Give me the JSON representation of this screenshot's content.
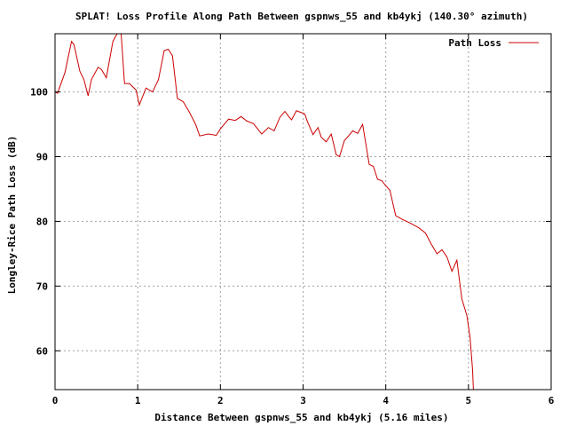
{
  "chart_data": {
    "type": "line",
    "title": "SPLAT! Loss Profile Along Path Between gspnws_55 and kb4ykj (140.30° azimuth)",
    "xlabel": "Distance Between gspnws_55 and kb4ykj (5.16 miles)",
    "ylabel": "Longley-Rice Path Loss (dB)",
    "xlim": [
      0,
      6
    ],
    "ylim": [
      54,
      109
    ],
    "xticks": [
      0,
      1,
      2,
      3,
      4,
      5,
      6
    ],
    "yticks": [
      60,
      70,
      80,
      90,
      100
    ],
    "grid": true,
    "legend_position": "top-right",
    "series": [
      {
        "name": "Path Loss",
        "color": "#cc0000",
        "x": [
          0.0,
          0.03,
          0.12,
          0.2,
          0.23,
          0.3,
          0.35,
          0.4,
          0.44,
          0.52,
          0.56,
          0.62,
          0.7,
          0.75,
          0.8,
          0.84,
          0.9,
          0.98,
          1.02,
          1.1,
          1.18,
          1.25,
          1.32,
          1.37,
          1.42,
          1.48,
          1.55,
          1.62,
          1.7,
          1.75,
          1.85,
          1.95,
          2.0,
          2.1,
          2.18,
          2.25,
          2.32,
          2.4,
          2.5,
          2.58,
          2.65,
          2.72,
          2.78,
          2.82,
          2.86,
          2.92,
          2.98,
          3.02,
          3.05,
          3.12,
          3.18,
          3.22,
          3.28,
          3.34,
          3.4,
          3.44,
          3.5,
          3.55,
          3.6,
          3.66,
          3.72,
          3.8,
          3.85,
          3.9,
          3.95,
          4.0,
          4.05,
          4.12,
          4.2,
          4.3,
          4.4,
          4.48,
          4.55,
          4.62,
          4.68,
          4.74,
          4.8,
          4.86,
          4.92,
          4.98,
          5.02,
          5.05,
          5.06
        ],
        "values": [
          100.0,
          99.8,
          103.0,
          107.8,
          107.3,
          103.2,
          101.9,
          99.4,
          101.9,
          103.8,
          103.5,
          102.2,
          107.8,
          109.0,
          109.0,
          101.3,
          101.3,
          100.3,
          98.0,
          100.6,
          100.0,
          101.9,
          106.4,
          106.6,
          105.6,
          99.0,
          98.5,
          97.0,
          95.0,
          93.2,
          93.5,
          93.3,
          94.3,
          95.8,
          95.6,
          96.2,
          95.5,
          95.1,
          93.5,
          94.5,
          94.0,
          96.1,
          97.0,
          96.3,
          95.7,
          97.1,
          96.8,
          96.6,
          95.5,
          93.4,
          94.5,
          93.0,
          92.3,
          93.5,
          90.3,
          90.0,
          92.5,
          93.2,
          94.0,
          93.6,
          95.0,
          88.8,
          88.5,
          86.5,
          86.3,
          85.5,
          84.8,
          80.9,
          80.3,
          79.7,
          79.0,
          78.2,
          76.5,
          75.0,
          75.6,
          74.5,
          72.3,
          74.0,
          68.0,
          65.5,
          62.0,
          57.0,
          54.0
        ]
      }
    ]
  }
}
